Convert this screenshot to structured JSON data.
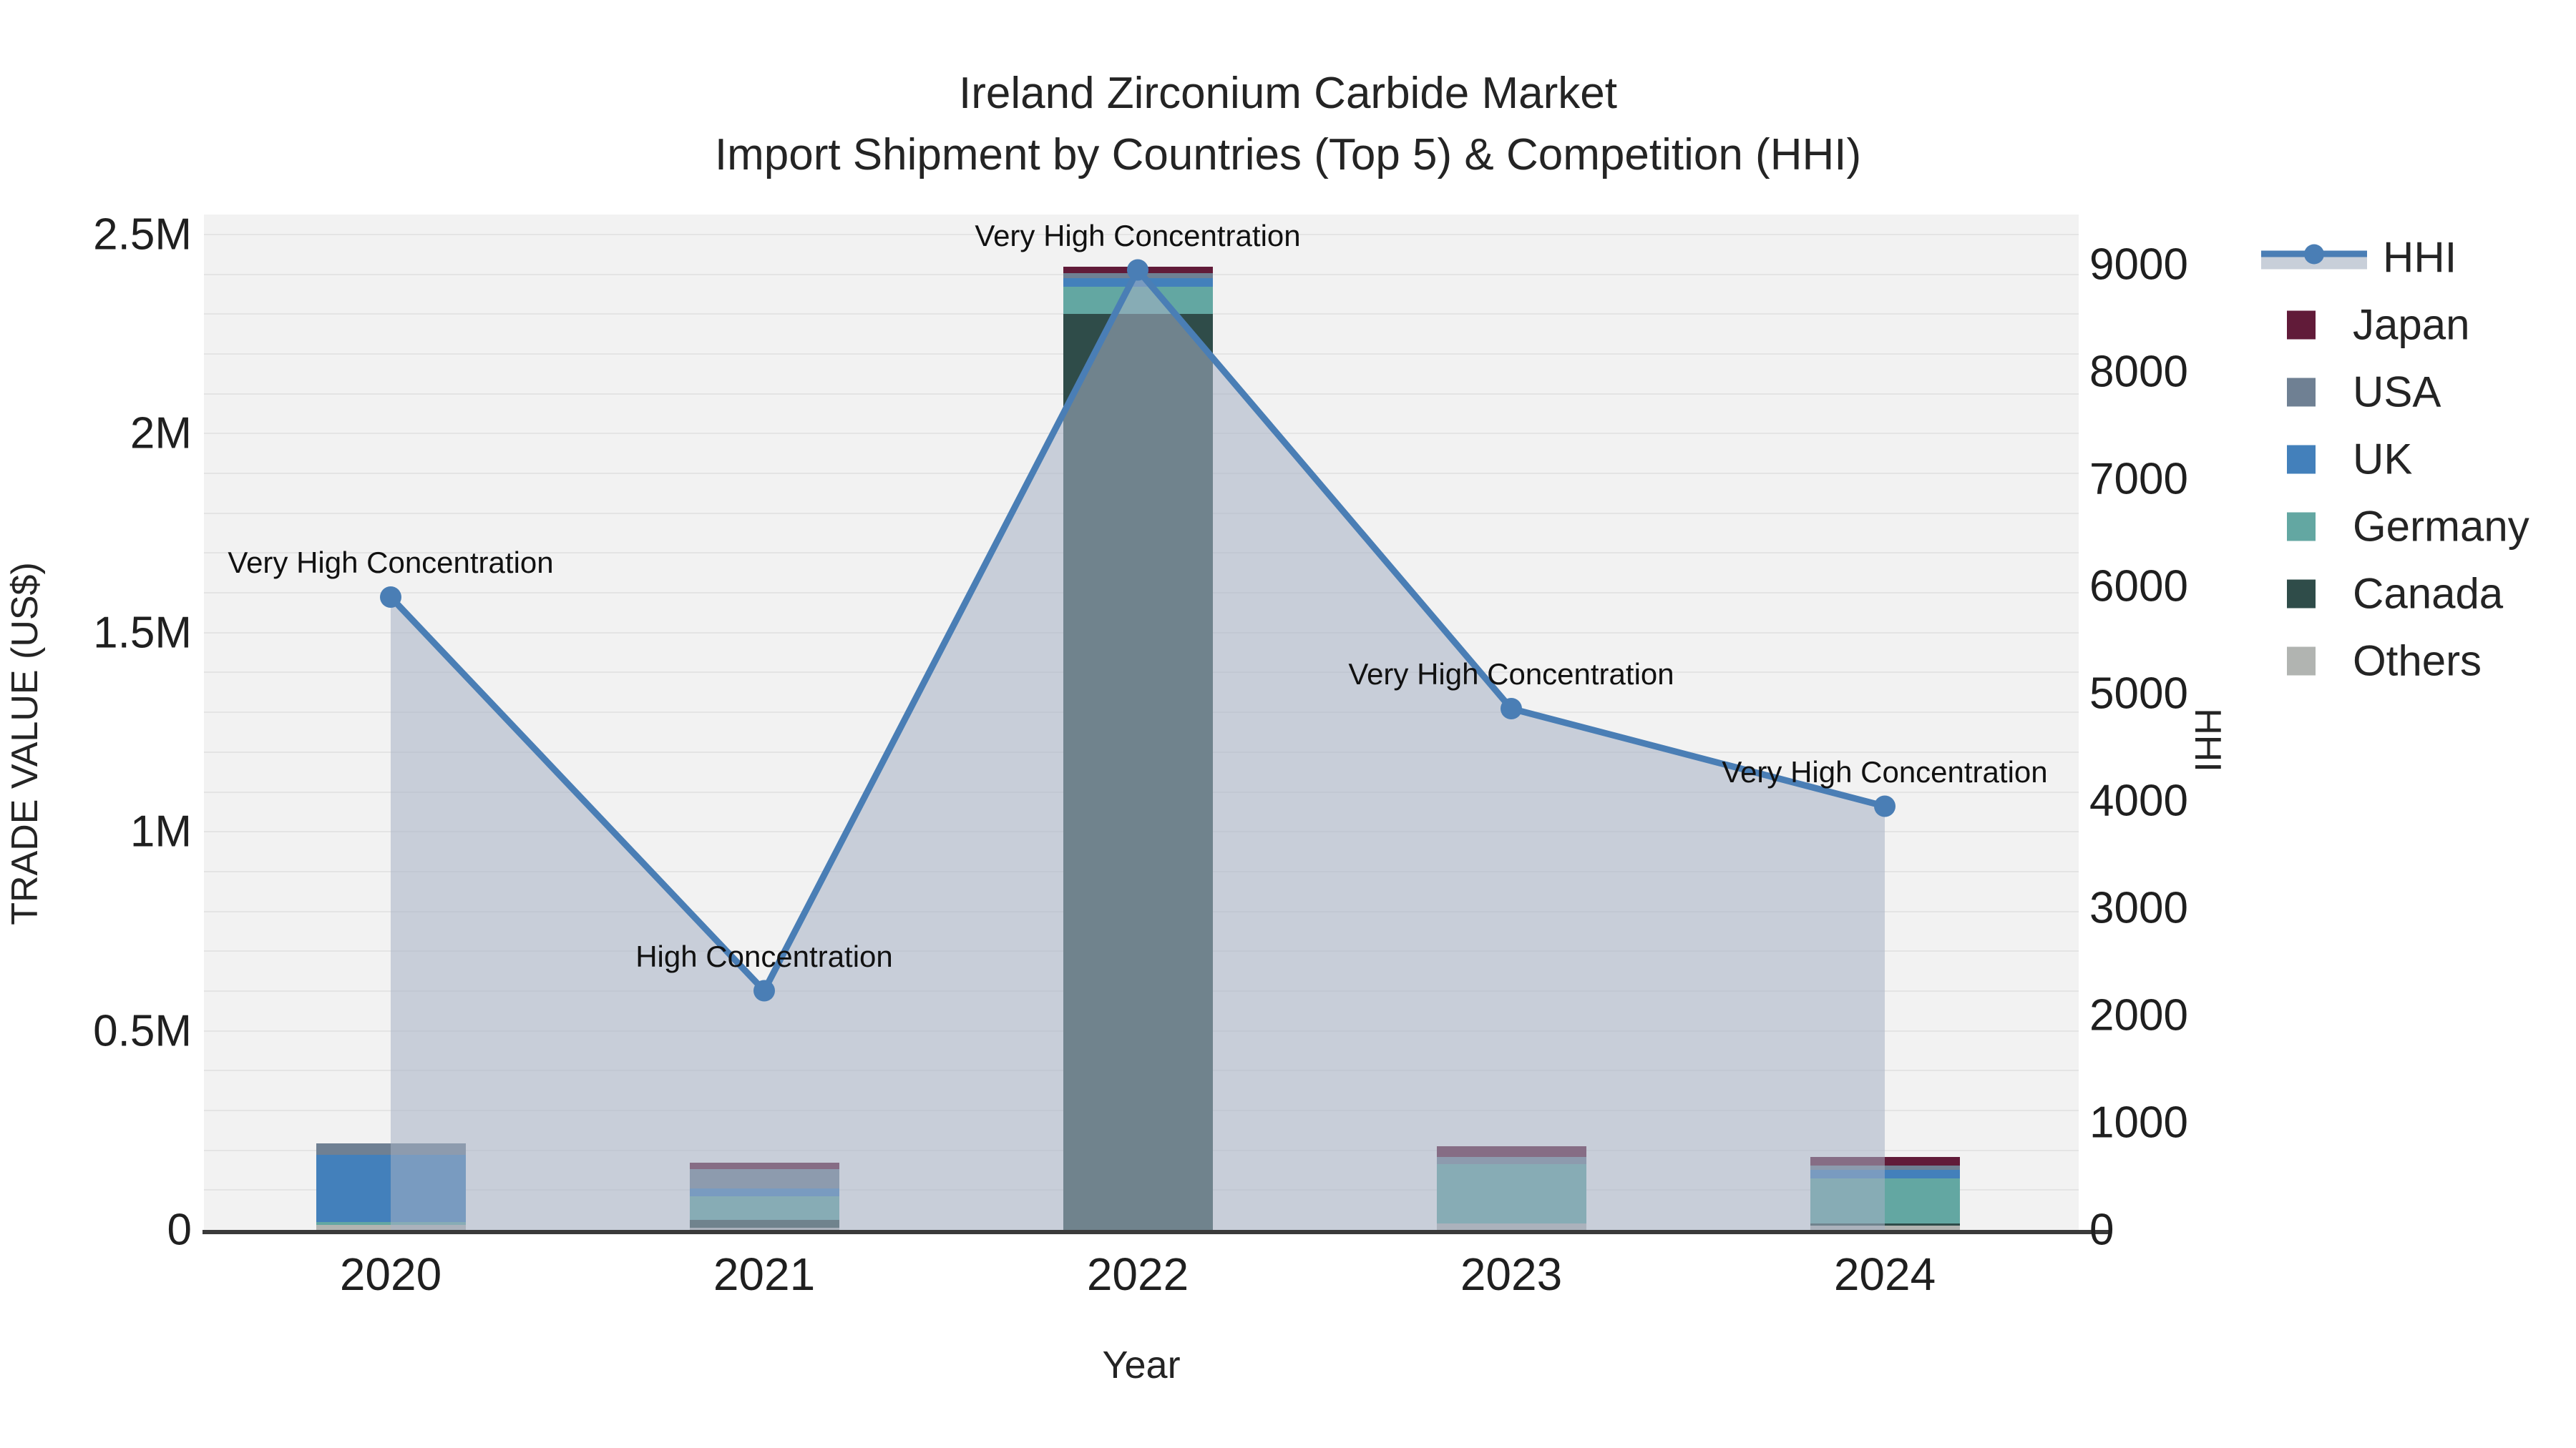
{
  "title": {
    "line1": "Ireland Zirconium Carbide Market",
    "line2": "Import Shipment by Countries (Top 5) & Competition (HHI)"
  },
  "axes": {
    "x_label": "Year",
    "y_left_label": "TRADE VALUE (US$)",
    "y_right_label": "HHI",
    "y_left_ticks": [
      "0",
      "0.5M",
      "1M",
      "1.5M",
      "2M",
      "2.5M"
    ],
    "y_right_ticks": [
      "0",
      "1000",
      "2000",
      "3000",
      "4000",
      "5000",
      "6000",
      "7000",
      "8000",
      "9000"
    ]
  },
  "legend": {
    "items": [
      {
        "label": "HHI",
        "type": "line",
        "color": "#4a7eb5"
      },
      {
        "label": "Japan",
        "type": "swatch",
        "color": "#611b39"
      },
      {
        "label": "USA",
        "type": "swatch",
        "color": "#6f8093"
      },
      {
        "label": "UK",
        "type": "swatch",
        "color": "#4380bb"
      },
      {
        "label": "Germany",
        "type": "swatch",
        "color": "#63a7a2"
      },
      {
        "label": "Canada",
        "type": "swatch",
        "color": "#2f4c49"
      },
      {
        "label": "Others",
        "type": "swatch",
        "color": "#b1b4b1"
      }
    ]
  },
  "colors": {
    "plot_background": "#f2f2f2",
    "gridline": "#e4e4e4",
    "axis_line": "#3a3a3a",
    "hhi_line": "#4a7eb5",
    "hhi_area_fill": "rgba(166,177,196,0.55)"
  },
  "chart_data": {
    "type": [
      "bar",
      "line"
    ],
    "title": "Ireland Zirconium Carbide Market — Import Shipment by Countries (Top 5) & Competition (HHI)",
    "categories": [
      "2020",
      "2021",
      "2022",
      "2023",
      "2024"
    ],
    "xlabel": "Year",
    "ylabel_left": "TRADE VALUE (US$)",
    "ylabel_right": "HHI",
    "ylim_left": [
      0,
      2500000
    ],
    "ylim_right": [
      0,
      9000
    ],
    "grid": "horizontal-minor-0.1M",
    "legend_position": "right",
    "bar_stack_order_bottom_to_top": [
      "Others",
      "Canada",
      "Germany",
      "UK",
      "USA",
      "Japan"
    ],
    "series": [
      {
        "name": "Others",
        "color": "#b1b4b1",
        "values": [
          12000,
          6000,
          0,
          16000,
          10000
        ]
      },
      {
        "name": "Canada",
        "color": "#2f4c49",
        "values": [
          0,
          20000,
          2300000,
          0,
          6000
        ]
      },
      {
        "name": "Germany",
        "color": "#63a7a2",
        "values": [
          8000,
          58000,
          68000,
          150000,
          114000
        ]
      },
      {
        "name": "UK",
        "color": "#4380bb",
        "values": [
          168000,
          20000,
          23000,
          0,
          21000
        ]
      },
      {
        "name": "USA",
        "color": "#6f8093",
        "values": [
          29000,
          48000,
          12000,
          18000,
          10000
        ]
      },
      {
        "name": "Japan",
        "color": "#611b39",
        "values": [
          0,
          16000,
          16000,
          27000,
          22000
        ]
      }
    ],
    "bar_totals_approx": [
      217000,
      168000,
      2419000,
      211000,
      183000
    ],
    "hhi_series": {
      "name": "HHI",
      "color": "#4a7eb5",
      "area_fill": "rgba(166,177,196,0.55)",
      "values": [
        5900,
        2230,
        8950,
        4860,
        3950
      ]
    },
    "annotations": [
      {
        "x": "2020",
        "text": "Very High Concentration"
      },
      {
        "x": "2021",
        "text": "High Concentration"
      },
      {
        "x": "2022",
        "text": "Very High Concentration"
      },
      {
        "x": "2023",
        "text": "Very High Concentration"
      },
      {
        "x": "2024",
        "text": "Very High Concentration"
      }
    ]
  }
}
